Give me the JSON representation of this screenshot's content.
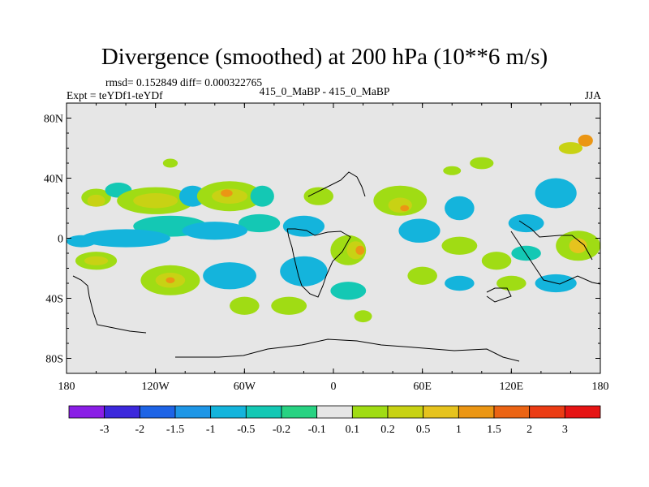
{
  "chart_data": {
    "type": "heatmap",
    "title": "Divergence (smoothed) at 200 hPa (10**6 m/s)",
    "stats_text": "rmsd= 0.152849  diff= 0.000322765",
    "left_label": "Expt = teYDf1-teYDf",
    "center_label": "415_0_MaBP - 415_0_MaBP",
    "right_label": "JJA",
    "xlim": [
      -180,
      180
    ],
    "ylim": [
      -90,
      90
    ],
    "x_ticks": [
      {
        "value": -180,
        "label": "180"
      },
      {
        "value": -120,
        "label": "120W"
      },
      {
        "value": -60,
        "label": "60W"
      },
      {
        "value": 0,
        "label": "0"
      },
      {
        "value": 60,
        "label": "60E"
      },
      {
        "value": 120,
        "label": "120E"
      },
      {
        "value": 180,
        "label": "180"
      }
    ],
    "y_ticks": [
      {
        "value": 80,
        "label": "80N"
      },
      {
        "value": 40,
        "label": "40N"
      },
      {
        "value": 0,
        "label": "0"
      },
      {
        "value": -40,
        "label": "40S"
      },
      {
        "value": -80,
        "label": "80S"
      }
    ],
    "colorbar": {
      "labels": [
        "-3",
        "-2",
        "-1.5",
        "-1",
        "-0.5",
        "-0.2",
        "-0.1",
        "0.1",
        "0.2",
        "0.5",
        "1",
        "1.5",
        "2",
        "3"
      ],
      "colors": [
        "#8a1ee6",
        "#3c28dc",
        "#1e64e6",
        "#1e96e6",
        "#14b4dc",
        "#14c8b4",
        "#28d282",
        "#e6e6e6",
        "#a0dc14",
        "#c8d214",
        "#e6c31e",
        "#eb9614",
        "#eb6414",
        "#eb3c14",
        "#e61414"
      ]
    },
    "background_color": "#e6e6e6",
    "features": [
      {
        "lon": -160,
        "lat": 27,
        "rx": 10,
        "ry": 6,
        "cat": 8
      },
      {
        "lon": -160,
        "lat": 25,
        "rx": 6,
        "ry": 4,
        "cat": 9
      },
      {
        "lon": -145,
        "lat": 32,
        "rx": 9,
        "ry": 5,
        "cat": 5
      },
      {
        "lon": -120,
        "lat": 25,
        "rx": 26,
        "ry": 9,
        "cat": 8
      },
      {
        "lon": -120,
        "lat": 25,
        "rx": 15,
        "ry": 5,
        "cat": 9
      },
      {
        "lon": -95,
        "lat": 28,
        "rx": 9,
        "ry": 7,
        "cat": 4
      },
      {
        "lon": -110,
        "lat": 8,
        "rx": 25,
        "ry": 7,
        "cat": 5
      },
      {
        "lon": -70,
        "lat": 28,
        "rx": 22,
        "ry": 10,
        "cat": 8
      },
      {
        "lon": -70,
        "lat": 28,
        "rx": 12,
        "ry": 5,
        "cat": 9
      },
      {
        "lon": -72,
        "lat": 30,
        "rx": 4,
        "ry": 2.5,
        "cat": 11
      },
      {
        "lon": -48,
        "lat": 28,
        "rx": 8,
        "ry": 7,
        "cat": 5
      },
      {
        "lon": -50,
        "lat": 10,
        "rx": 14,
        "ry": 6,
        "cat": 5
      },
      {
        "lon": -80,
        "lat": 5,
        "rx": 22,
        "ry": 6,
        "cat": 4
      },
      {
        "lon": -140,
        "lat": 0,
        "rx": 30,
        "ry": 6,
        "cat": 4
      },
      {
        "lon": -170,
        "lat": -2,
        "rx": 10,
        "ry": 4,
        "cat": 4
      },
      {
        "lon": -160,
        "lat": -15,
        "rx": 14,
        "ry": 6,
        "cat": 8
      },
      {
        "lon": -160,
        "lat": -15,
        "rx": 8,
        "ry": 3,
        "cat": 9
      },
      {
        "lon": -110,
        "lat": -28,
        "rx": 20,
        "ry": 10,
        "cat": 8
      },
      {
        "lon": -110,
        "lat": -28,
        "rx": 10,
        "ry": 5,
        "cat": 9
      },
      {
        "lon": -110,
        "lat": -28,
        "rx": 3,
        "ry": 2,
        "cat": 11
      },
      {
        "lon": -70,
        "lat": -25,
        "rx": 18,
        "ry": 9,
        "cat": 4
      },
      {
        "lon": -60,
        "lat": -45,
        "rx": 10,
        "ry": 6,
        "cat": 8
      },
      {
        "lon": -10,
        "lat": 28,
        "rx": 10,
        "ry": 6,
        "cat": 8
      },
      {
        "lon": -20,
        "lat": 8,
        "rx": 14,
        "ry": 7,
        "cat": 4
      },
      {
        "lon": 10,
        "lat": -8,
        "rx": 12,
        "ry": 10,
        "cat": 8
      },
      {
        "lon": 15,
        "lat": -8,
        "rx": 6,
        "ry": 6,
        "cat": 9
      },
      {
        "lon": 18,
        "lat": -8,
        "rx": 3,
        "ry": 3,
        "cat": 11
      },
      {
        "lon": -20,
        "lat": -22,
        "rx": 16,
        "ry": 10,
        "cat": 4
      },
      {
        "lon": -30,
        "lat": -45,
        "rx": 12,
        "ry": 6,
        "cat": 8
      },
      {
        "lon": 10,
        "lat": -35,
        "rx": 12,
        "ry": 6,
        "cat": 5
      },
      {
        "lon": 45,
        "lat": 25,
        "rx": 18,
        "ry": 10,
        "cat": 8
      },
      {
        "lon": 45,
        "lat": 22,
        "rx": 8,
        "ry": 5,
        "cat": 9
      },
      {
        "lon": 48,
        "lat": 20,
        "rx": 3,
        "ry": 2,
        "cat": 11
      },
      {
        "lon": 58,
        "lat": 5,
        "rx": 14,
        "ry": 8,
        "cat": 4
      },
      {
        "lon": 85,
        "lat": 20,
        "rx": 10,
        "ry": 8,
        "cat": 4
      },
      {
        "lon": 85,
        "lat": -5,
        "rx": 12,
        "ry": 6,
        "cat": 8
      },
      {
        "lon": 60,
        "lat": -25,
        "rx": 10,
        "ry": 6,
        "cat": 8
      },
      {
        "lon": 85,
        "lat": -30,
        "rx": 10,
        "ry": 5,
        "cat": 4
      },
      {
        "lon": 110,
        "lat": -15,
        "rx": 10,
        "ry": 6,
        "cat": 8
      },
      {
        "lon": 130,
        "lat": 10,
        "rx": 12,
        "ry": 6,
        "cat": 4
      },
      {
        "lon": 150,
        "lat": 30,
        "rx": 14,
        "ry": 10,
        "cat": 4
      },
      {
        "lon": 130,
        "lat": -10,
        "rx": 10,
        "ry": 5,
        "cat": 5
      },
      {
        "lon": 165,
        "lat": -5,
        "rx": 15,
        "ry": 10,
        "cat": 8
      },
      {
        "lon": 165,
        "lat": -5,
        "rx": 6,
        "ry": 5,
        "cat": 10
      },
      {
        "lon": 160,
        "lat": 60,
        "rx": 8,
        "ry": 4,
        "cat": 9
      },
      {
        "lon": 170,
        "lat": 65,
        "rx": 5,
        "ry": 4,
        "cat": 11
      },
      {
        "lon": 150,
        "lat": -30,
        "rx": 14,
        "ry": 6,
        "cat": 4
      },
      {
        "lon": 120,
        "lat": -30,
        "rx": 10,
        "ry": 5,
        "cat": 8
      },
      {
        "lon": 100,
        "lat": 50,
        "rx": 8,
        "ry": 4,
        "cat": 8
      },
      {
        "lon": 80,
        "lat": 45,
        "rx": 6,
        "ry": 3,
        "cat": 8
      },
      {
        "lon": -110,
        "lat": 50,
        "rx": 5,
        "ry": 3,
        "cat": 8
      },
      {
        "lon": 20,
        "lat": -52,
        "rx": 6,
        "ry": 4,
        "cat": 8
      }
    ]
  }
}
